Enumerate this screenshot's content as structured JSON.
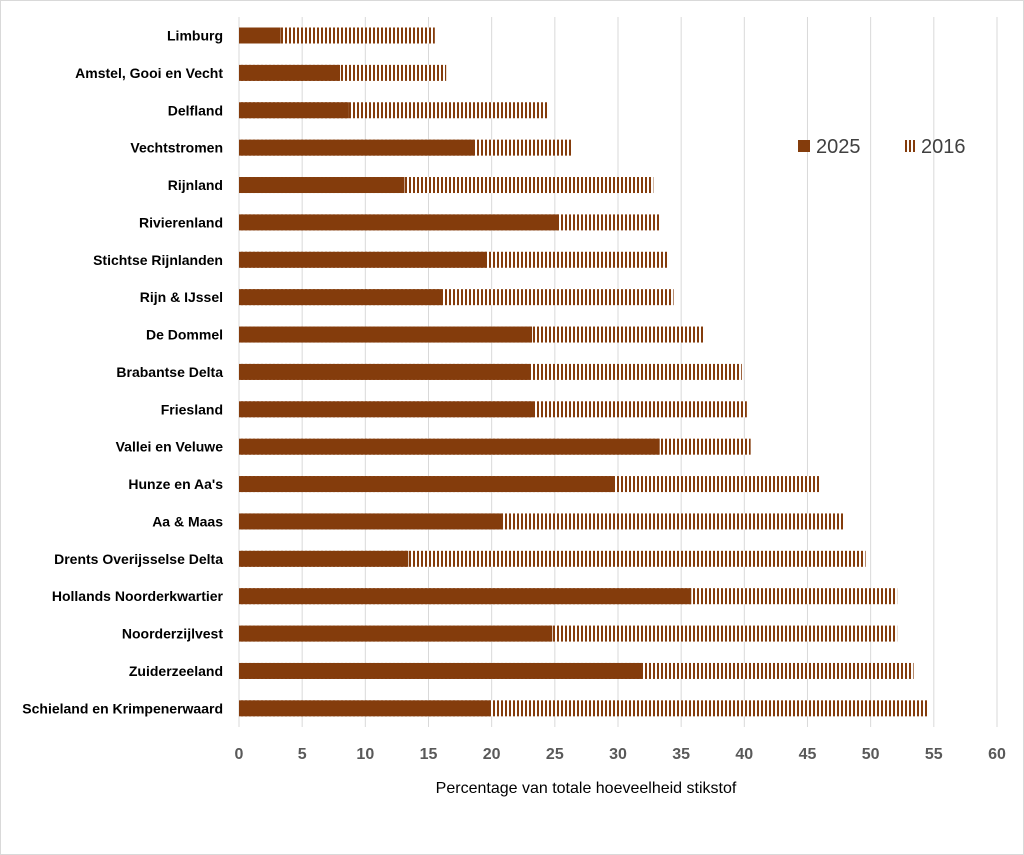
{
  "chart_data": {
    "type": "bar",
    "orientation": "horizontal",
    "title": "",
    "xlabel": "Percentage van totale hoeveelheid stikstof",
    "ylabel": "",
    "xlim": [
      0,
      60
    ],
    "xticks": [
      0,
      5,
      10,
      15,
      20,
      25,
      30,
      35,
      40,
      45,
      50,
      55,
      60
    ],
    "grid": true,
    "legend_position": "right",
    "categories": [
      "Limburg",
      "Amstel, Gooi en Vecht",
      "Delfland",
      "Vechtstromen",
      "Rijnland",
      "Rivierenland",
      "Stichtse Rijnlanden",
      "Rijn & IJssel",
      "De Dommel",
      "Brabantse Delta",
      "Friesland",
      "Vallei en Veluwe",
      "Hunze en Aa's",
      "Aa & Maas",
      "Drents Overijsselse Delta",
      "Hollands Noorderkwartier",
      "Noorderzijlvest",
      "Zuiderzeeland",
      "Schieland en Krimpenerwaard"
    ],
    "series": [
      {
        "name": "2025",
        "pattern": "solid",
        "color": "#843c0c",
        "values": [
          3.3,
          8.0,
          8.7,
          18.6,
          13.1,
          25.3,
          19.6,
          16.1,
          23.2,
          23.0,
          23.3,
          33.3,
          29.7,
          20.9,
          13.4,
          35.8,
          24.8,
          31.9,
          19.9
        ]
      },
      {
        "name": "2016",
        "pattern": "vertical-stripes",
        "color": "#843c0c",
        "values": [
          15.5,
          16.4,
          24.5,
          26.3,
          32.8,
          33.4,
          33.9,
          34.4,
          36.8,
          39.8,
          40.2,
          40.5,
          46.0,
          47.9,
          49.6,
          52.1,
          52.1,
          53.4,
          54.6
        ]
      }
    ]
  }
}
